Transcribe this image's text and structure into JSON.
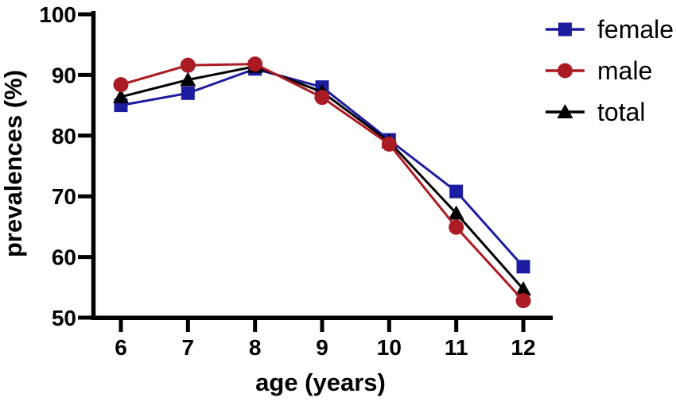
{
  "chart_data": {
    "type": "line",
    "title": "",
    "xlabel": "age (years)",
    "ylabel": "prevalences (%)",
    "x": [
      6,
      7,
      8,
      9,
      10,
      11,
      12
    ],
    "ylim": [
      50,
      100
    ],
    "yticks": [
      50,
      60,
      70,
      80,
      90,
      100
    ],
    "grid": false,
    "legend_position": "top-right",
    "axis_color": "#000000",
    "background_color": "#ffffff",
    "series": [
      {
        "name": "female",
        "marker": "square",
        "color": "#1c1ca0",
        "values": [
          85.0,
          87.0,
          91.0,
          88.0,
          79.3,
          70.8,
          58.4
        ]
      },
      {
        "name": "male",
        "marker": "circle",
        "color": "#ab1b24",
        "values": [
          88.4,
          91.6,
          91.8,
          86.3,
          78.6,
          64.9,
          52.8
        ]
      },
      {
        "name": "total",
        "marker": "triangle",
        "color": "#000000",
        "values": [
          86.4,
          89.2,
          91.4,
          87.2,
          79.0,
          67.2,
          54.7
        ]
      }
    ]
  }
}
